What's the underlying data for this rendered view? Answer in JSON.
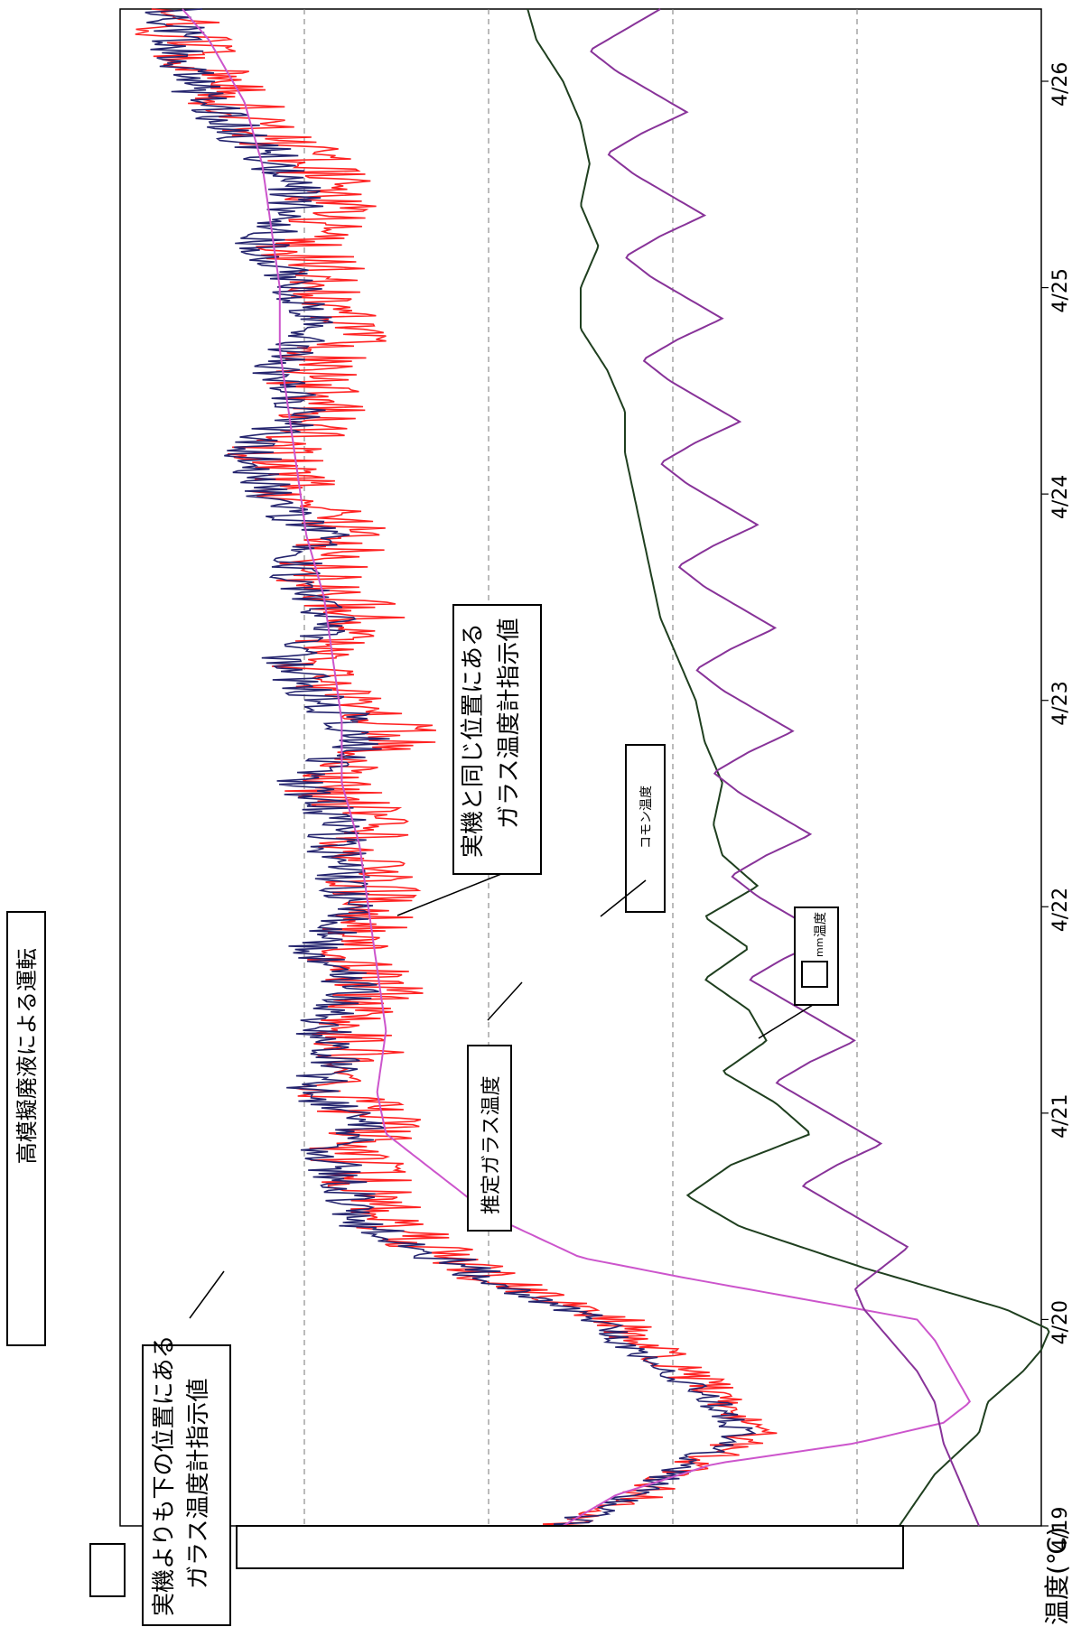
{
  "chart_data": {
    "type": "line",
    "title": "高模擬廃液による運転",
    "ylabel": "温度(℃)",
    "x_ticks": [
      "4/19",
      "4/20",
      "4/21",
      "4/22",
      "4/23",
      "4/24",
      "4/25",
      "4/26"
    ],
    "xlim": [
      0,
      7.35
    ],
    "gridlines": 4,
    "series": [
      {
        "id": "lower",
        "color": "#ff2222",
        "x": [
          0.0,
          0.15,
          0.3,
          0.45,
          0.6,
          0.75,
          0.9,
          1.0,
          1.1,
          1.2,
          1.35,
          1.5,
          1.65,
          1.8,
          1.95,
          2.1,
          2.25,
          2.4,
          2.6,
          2.8,
          3.0,
          3.2,
          3.4,
          3.6,
          3.8,
          4.0,
          4.2,
          4.4,
          4.6,
          4.8,
          5.0,
          5.2,
          5.4,
          5.6,
          5.8,
          6.0,
          6.2,
          6.4,
          6.6,
          6.8,
          7.0,
          7.2,
          7.35
        ],
        "y": [
          0.52,
          0.43,
          0.37,
          0.3,
          0.33,
          0.38,
          0.44,
          0.46,
          0.54,
          0.59,
          0.66,
          0.73,
          0.74,
          0.76,
          0.72,
          0.78,
          0.74,
          0.76,
          0.73,
          0.77,
          0.72,
          0.75,
          0.74,
          0.79,
          0.7,
          0.75,
          0.82,
          0.74,
          0.8,
          0.76,
          0.82,
          0.85,
          0.78,
          0.81,
          0.76,
          0.78,
          0.82,
          0.78,
          0.8,
          0.87,
          0.92,
          0.95,
          0.96
        ]
      },
      {
        "id": "same",
        "color": "#24246e",
        "x": [
          0.0,
          0.15,
          0.3,
          0.45,
          0.6,
          0.75,
          0.9,
          1.0,
          1.1,
          1.2,
          1.35,
          1.5,
          1.65,
          1.8,
          1.95,
          2.1,
          2.25,
          2.4,
          2.6,
          2.8,
          3.0,
          3.2,
          3.4,
          3.6,
          3.8,
          4.0,
          4.2,
          4.4,
          4.6,
          4.8,
          5.0,
          5.2,
          5.4,
          5.6,
          5.8,
          6.0,
          6.2,
          6.4,
          6.6,
          6.8,
          7.0,
          7.2,
          7.35
        ],
        "y": [
          0.52,
          0.44,
          0.38,
          0.32,
          0.35,
          0.4,
          0.46,
          0.48,
          0.55,
          0.61,
          0.68,
          0.77,
          0.76,
          0.79,
          0.74,
          0.81,
          0.77,
          0.79,
          0.76,
          0.8,
          0.75,
          0.78,
          0.77,
          0.82,
          0.74,
          0.79,
          0.84,
          0.78,
          0.83,
          0.79,
          0.86,
          0.87,
          0.82,
          0.84,
          0.8,
          0.82,
          0.86,
          0.82,
          0.84,
          0.9,
          0.94,
          0.96,
          0.96
        ]
      },
      {
        "id": "estimated",
        "color": "#cc55cc",
        "x": [
          0.0,
          0.15,
          0.3,
          0.4,
          0.5,
          0.6,
          0.75,
          0.9,
          1.0,
          1.1,
          1.2,
          1.3,
          1.5,
          1.7,
          1.9,
          2.1,
          2.4,
          2.7,
          3.0,
          3.3,
          3.6,
          3.9,
          4.2,
          4.5,
          4.8,
          5.1,
          5.4,
          5.7,
          6.0,
          6.3,
          6.6,
          6.9,
          7.2,
          7.35
        ],
        "y": [
          0.52,
          0.46,
          0.35,
          0.19,
          0.09,
          0.06,
          0.08,
          0.1,
          0.12,
          0.25,
          0.38,
          0.5,
          0.6,
          0.66,
          0.72,
          0.73,
          0.72,
          0.73,
          0.74,
          0.75,
          0.77,
          0.77,
          0.78,
          0.79,
          0.81,
          0.82,
          0.83,
          0.84,
          0.84,
          0.85,
          0.86,
          0.88,
          0.92,
          0.95
        ]
      },
      {
        "id": "common",
        "color": "#1f3f1f",
        "x": [
          0.0,
          0.25,
          0.45,
          0.6,
          0.75,
          0.85,
          0.95,
          1.05,
          1.15,
          1.25,
          1.35,
          1.45,
          1.6,
          1.75,
          1.9,
          2.05,
          2.2,
          2.35,
          2.5,
          2.65,
          2.8,
          2.95,
          3.1,
          3.25,
          3.4,
          3.6,
          3.8,
          4.0,
          4.2,
          4.4,
          4.6,
          4.8,
          5.0,
          5.2,
          5.4,
          5.6,
          5.8,
          6.0,
          6.2,
          6.4,
          6.6,
          6.8,
          7.0,
          7.2,
          7.35
        ],
        "y": [
          0.14,
          0.1,
          0.05,
          0.04,
          0.0,
          -0.02,
          -0.03,
          0.02,
          0.1,
          0.18,
          0.25,
          0.32,
          0.38,
          0.33,
          0.24,
          0.28,
          0.34,
          0.29,
          0.31,
          0.36,
          0.31,
          0.36,
          0.3,
          0.34,
          0.35,
          0.34,
          0.36,
          0.37,
          0.39,
          0.41,
          0.42,
          0.43,
          0.44,
          0.45,
          0.45,
          0.47,
          0.5,
          0.5,
          0.48,
          0.5,
          0.49,
          0.5,
          0.52,
          0.55,
          0.56
        ]
      },
      {
        "id": "room",
        "color": "#883399",
        "x": [
          0.0,
          0.2,
          0.4,
          0.6,
          0.75,
          0.85,
          0.95,
          1.05,
          1.15,
          1.25,
          1.35,
          1.45,
          1.55,
          1.65,
          1.75,
          1.85,
          1.95,
          2.05,
          2.15,
          2.25,
          2.35,
          2.45,
          2.55,
          2.65,
          2.75,
          2.85,
          2.95,
          3.05,
          3.15,
          3.25,
          3.35,
          3.45,
          3.55,
          3.65,
          3.75,
          3.85,
          3.95,
          4.05,
          4.15,
          4.25,
          4.35,
          4.45,
          4.55,
          4.65,
          4.75,
          4.85,
          4.95,
          5.05,
          5.15,
          5.25,
          5.35,
          5.45,
          5.55,
          5.65,
          5.75,
          5.85,
          5.95,
          6.05,
          6.15,
          6.25,
          6.35,
          6.45,
          6.55,
          6.65,
          6.75,
          6.85,
          6.95,
          7.05,
          7.15,
          7.25,
          7.35
        ],
        "y": [
          0.05,
          0.07,
          0.09,
          0.1,
          0.12,
          0.14,
          0.16,
          0.18,
          0.19,
          0.16,
          0.13,
          0.17,
          0.21,
          0.25,
          0.21,
          0.16,
          0.2,
          0.24,
          0.28,
          0.24,
          0.19,
          0.23,
          0.27,
          0.31,
          0.27,
          0.22,
          0.26,
          0.3,
          0.33,
          0.29,
          0.24,
          0.28,
          0.32,
          0.35,
          0.31,
          0.26,
          0.3,
          0.34,
          0.37,
          0.33,
          0.28,
          0.32,
          0.36,
          0.39,
          0.35,
          0.3,
          0.34,
          0.38,
          0.41,
          0.37,
          0.32,
          0.36,
          0.4,
          0.43,
          0.39,
          0.34,
          0.38,
          0.42,
          0.45,
          0.41,
          0.36,
          0.4,
          0.44,
          0.47,
          0.43,
          0.38,
          0.42,
          0.46,
          0.49,
          0.45,
          0.41
        ]
      }
    ],
    "annotations": {
      "lower_label_1": "実機よりも下の位置にある",
      "lower_label_2": "ガラス温度計指示値",
      "same_label_1": "実機と同じ位置にある",
      "same_label_2": "ガラス温度計指示値",
      "estimated_label": "推定ガラス温度",
      "common_label": "コモン温度",
      "room_label_unit": "mm",
      "room_label_rest": "温度"
    }
  }
}
